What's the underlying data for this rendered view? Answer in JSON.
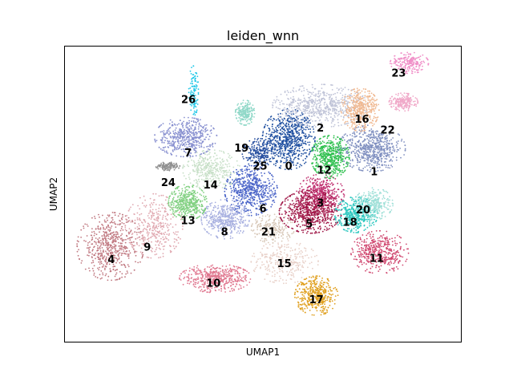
{
  "chart_data": {
    "type": "scatter",
    "title": "leiden_wnn",
    "xlabel": "UMAP1",
    "ylabel": "UMAP2",
    "xlim": [
      0,
      100
    ],
    "ylim": [
      0,
      100
    ],
    "grid": false,
    "ticks": false,
    "clusters": [
      {
        "label": "0",
        "color": "#1f4fa0",
        "center": [
          56.5,
          68.6
        ],
        "spread": [
          5.5,
          8.5
        ],
        "density": 1.0
      },
      {
        "label": "1",
        "color": "#8090c0",
        "center": [
          77.5,
          65.5
        ],
        "spread": [
          7.0,
          6.5
        ],
        "density": 0.9
      },
      {
        "label": "2",
        "color": "#c0c4d8",
        "center": [
          64.5,
          79.9
        ],
        "spread": [
          10.0,
          6.0
        ],
        "density": 0.9
      },
      {
        "label": "3",
        "color": "#c03070",
        "center": [
          64.5,
          50.0
        ],
        "spread": [
          5.0,
          5.5
        ],
        "density": 0.6
      },
      {
        "label": "4",
        "color": "#c07880",
        "center": [
          11.5,
          32.3
        ],
        "spread": [
          7.0,
          9.5
        ],
        "density": 0.8
      },
      {
        "label": "5",
        "color": "#a01848",
        "center": [
          62.0,
          44.0
        ],
        "spread": [
          6.5,
          6.0
        ],
        "density": 0.9
      },
      {
        "label": "6",
        "color": "#4a64c8",
        "center": [
          47.0,
          51.2
        ],
        "spread": [
          5.5,
          7.0
        ],
        "density": 0.8
      },
      {
        "label": "7",
        "color": "#8890d0",
        "center": [
          30.5,
          69.3
        ],
        "spread": [
          6.5,
          5.5
        ],
        "density": 0.7
      },
      {
        "label": "8",
        "color": "#a8b0e0",
        "center": [
          40.5,
          41.5
        ],
        "spread": [
          5.0,
          5.5
        ],
        "density": 0.6
      },
      {
        "label": "9",
        "color": "#e0a8b0",
        "center": [
          22.5,
          39.2
        ],
        "spread": [
          6.0,
          9.0
        ],
        "density": 0.5
      },
      {
        "label": "10",
        "color": "#e07890",
        "center": [
          38.0,
          21.5
        ],
        "spread": [
          7.5,
          4.0
        ],
        "density": 0.7
      },
      {
        "label": "11",
        "color": "#d04870",
        "center": [
          79.5,
          30.3
        ],
        "spread": [
          6.0,
          6.0
        ],
        "density": 0.6
      },
      {
        "label": "12",
        "color": "#30c050",
        "center": [
          67.0,
          62.6
        ],
        "spread": [
          4.0,
          6.0
        ],
        "density": 0.7
      },
      {
        "label": "13",
        "color": "#80d080",
        "center": [
          31.0,
          47.2
        ],
        "spread": [
          4.0,
          5.0
        ],
        "density": 0.6
      },
      {
        "label": "14",
        "color": "#c8e0c8",
        "center": [
          37.0,
          58.3
        ],
        "spread": [
          6.0,
          5.5
        ],
        "density": 0.5
      },
      {
        "label": "15",
        "color": "#e8d0c8",
        "center": [
          55.5,
          27.0
        ],
        "spread": [
          7.0,
          6.0
        ],
        "density": 0.4
      },
      {
        "label": "16",
        "color": "#f0b890",
        "center": [
          74.5,
          78.6
        ],
        "spread": [
          4.0,
          6.0
        ],
        "density": 0.6
      },
      {
        "label": "17",
        "color": "#e0a020",
        "center": [
          63.5,
          15.6
        ],
        "spread": [
          4.5,
          5.5
        ],
        "density": 0.6
      },
      {
        "label": "18",
        "color": "#30c8c0",
        "center": [
          73.5,
          43.0
        ],
        "spread": [
          4.5,
          5.0
        ],
        "density": 0.6
      },
      {
        "label": "19",
        "color": "#90d8c8",
        "center": [
          45.5,
          77.6
        ],
        "spread": [
          2.0,
          3.5
        ],
        "density": 0.3
      },
      {
        "label": "20",
        "color": "#a0e0d8",
        "center": [
          78.0,
          46.7
        ],
        "spread": [
          4.0,
          4.5
        ],
        "density": 0.4
      },
      {
        "label": "21",
        "color": "#d8c8b8",
        "center": [
          52.5,
          38.3
        ],
        "spread": [
          4.5,
          4.0
        ],
        "density": 0.3
      },
      {
        "label": "22",
        "color": "#f0a8c8",
        "center": [
          85.5,
          81.2
        ],
        "spread": [
          3.0,
          2.5
        ],
        "density": 0.3
      },
      {
        "label": "23",
        "color": "#f090c8",
        "center": [
          87.0,
          94.5
        ],
        "spread": [
          4.0,
          3.0
        ],
        "density": 0.3
      },
      {
        "label": "24",
        "color": "#909090",
        "center": [
          26.0,
          59.4
        ],
        "spread": [
          2.5,
          1.2
        ],
        "density": 0.2
      },
      {
        "label": "25",
        "color": "#2850a0",
        "center": [
          49.0,
          64.0
        ],
        "spread": [
          3.5,
          4.0
        ],
        "density": 0.3
      },
      {
        "label": "26",
        "color": "#20c8e8",
        "center": [
          32.5,
          85.0
        ],
        "spread": [
          1.0,
          7.5
        ],
        "density": 0.15
      }
    ],
    "label_positions": [
      {
        "label": "0",
        "xy": [
          56.5,
          59.2
        ]
      },
      {
        "label": "1",
        "xy": [
          78.1,
          57.3
        ]
      },
      {
        "label": "2",
        "xy": [
          64.5,
          72.2
        ]
      },
      {
        "label": "3",
        "xy": [
          64.5,
          46.7
        ]
      },
      {
        "label": "4",
        "xy": [
          11.7,
          27.6
        ]
      },
      {
        "label": "5",
        "xy": [
          61.7,
          39.7
        ]
      },
      {
        "label": "6",
        "xy": [
          50.0,
          44.9
        ]
      },
      {
        "label": "7",
        "xy": [
          31.1,
          63.7
        ]
      },
      {
        "label": "8",
        "xy": [
          40.3,
          36.9
        ]
      },
      {
        "label": "9",
        "xy": [
          20.8,
          31.8
        ]
      },
      {
        "label": "10",
        "xy": [
          37.5,
          19.6
        ]
      },
      {
        "label": "11",
        "xy": [
          78.7,
          28.0
        ]
      },
      {
        "label": "12",
        "xy": [
          65.5,
          57.9
        ]
      },
      {
        "label": "13",
        "xy": [
          31.1,
          40.7
        ]
      },
      {
        "label": "14",
        "xy": [
          36.8,
          52.8
        ]
      },
      {
        "label": "15",
        "xy": [
          55.4,
          26.2
        ]
      },
      {
        "label": "16",
        "xy": [
          75.0,
          75.2
        ]
      },
      {
        "label": "17",
        "xy": [
          63.5,
          14.0
        ]
      },
      {
        "label": "18",
        "xy": [
          72.0,
          40.2
        ]
      },
      {
        "label": "19",
        "xy": [
          44.6,
          65.4
        ]
      },
      {
        "label": "20",
        "xy": [
          75.3,
          44.4
        ]
      },
      {
        "label": "21",
        "xy": [
          51.4,
          36.9
        ]
      },
      {
        "label": "22",
        "xy": [
          81.5,
          71.5
        ]
      },
      {
        "label": "23",
        "xy": [
          84.3,
          90.7
        ]
      },
      {
        "label": "24",
        "xy": [
          26.1,
          53.7
        ]
      },
      {
        "label": "25",
        "xy": [
          49.3,
          59.3
        ]
      },
      {
        "label": "26",
        "xy": [
          31.2,
          81.8
        ]
      }
    ]
  }
}
